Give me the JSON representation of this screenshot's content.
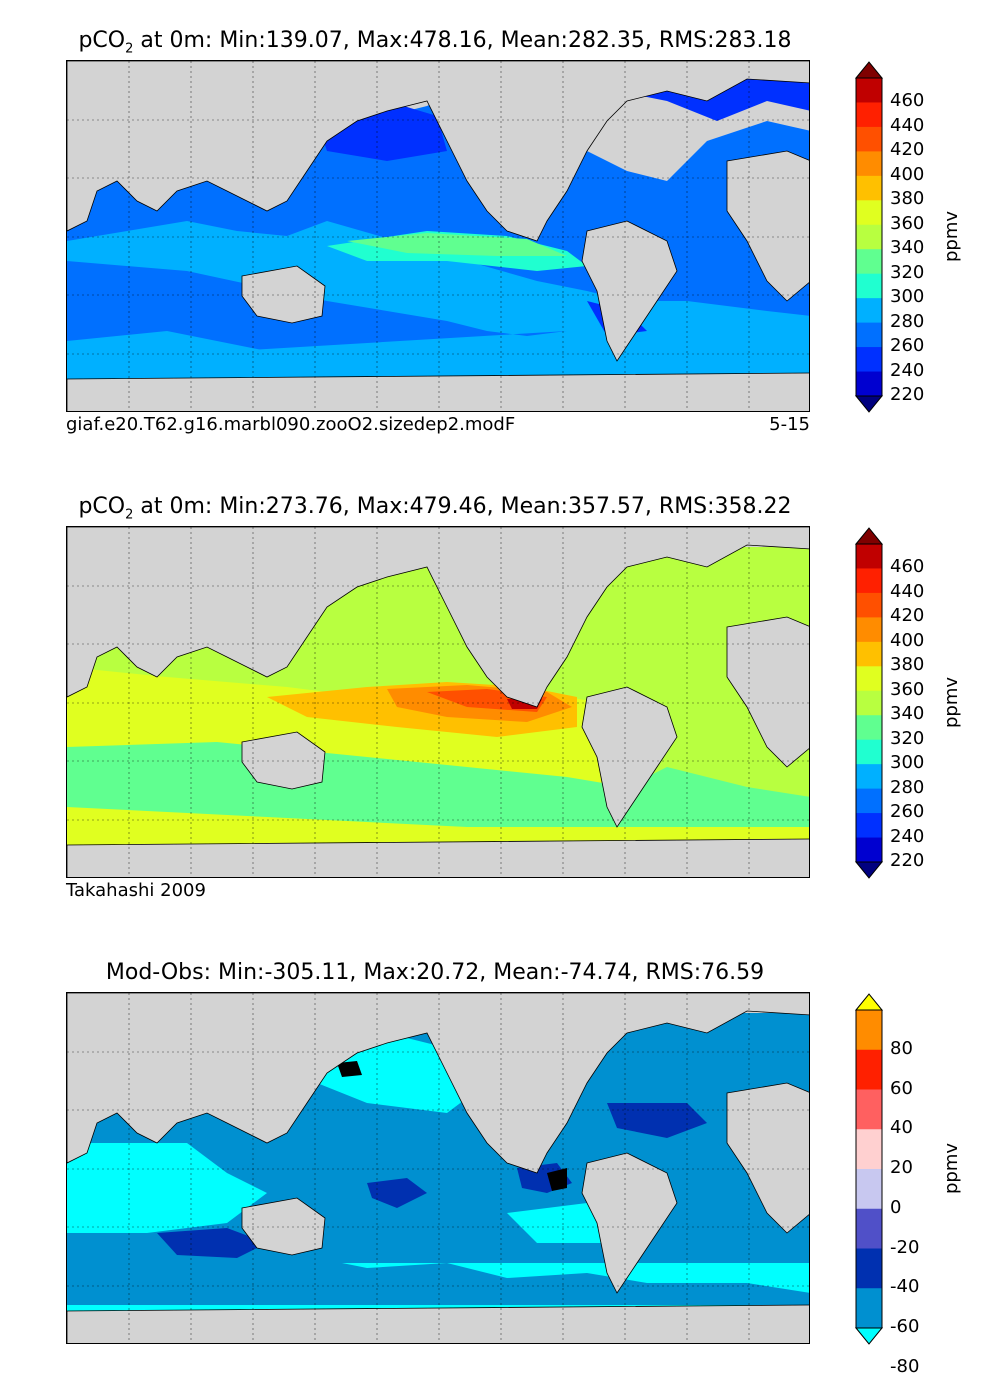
{
  "panels": [
    {
      "title_prefix": "pCO",
      "title_sub": "2",
      "title_rest": " at 0m: Min:139.07, Max:478.16, Mean:282.35, RMS:283.18",
      "caption_left": "giaf.e20.T62.g16.marbl090.zooO2.sizedep2.modF",
      "caption_right": "5-15",
      "colorbar_unit": "ppmv",
      "colorbar_ticks": [
        "460",
        "440",
        "420",
        "400",
        "380",
        "360",
        "340",
        "320",
        "300",
        "280",
        "260",
        "240",
        "220"
      ],
      "colorbar_colors": [
        "#7f0000",
        "#c00000",
        "#ff2000",
        "#ff5000",
        "#ff8c00",
        "#ffc000",
        "#e0ff20",
        "#b8ff40",
        "#60ff90",
        "#20ffd0",
        "#00b0ff",
        "#0070ff",
        "#0030ff",
        "#0000d0",
        "#00007f"
      ],
      "dominant_colors": [
        "#0070ff",
        "#00b0ff",
        "#0030ff",
        "#20ffd0"
      ]
    },
    {
      "title_prefix": "pCO",
      "title_sub": "2",
      "title_rest": " at 0m: Min:273.76, Max:479.46, Mean:357.57, RMS:358.22",
      "caption_left": "Takahashi 2009",
      "caption_right": "",
      "colorbar_unit": "ppmv",
      "colorbar_ticks": [
        "460",
        "440",
        "420",
        "400",
        "380",
        "360",
        "340",
        "320",
        "300",
        "280",
        "260",
        "240",
        "220"
      ],
      "colorbar_colors": [
        "#7f0000",
        "#c00000",
        "#ff2000",
        "#ff5000",
        "#ff8c00",
        "#ffc000",
        "#e0ff20",
        "#b8ff40",
        "#60ff90",
        "#20ffd0",
        "#00b0ff",
        "#0070ff",
        "#0030ff",
        "#0000d0",
        "#00007f"
      ],
      "dominant_colors": [
        "#b8ff40",
        "#e0ff20",
        "#60ff90",
        "#ff5000"
      ]
    },
    {
      "title_prefix": "Mod-Obs: Min:-305.11, Max:20.72, Mean:-74.74, RMS:76.59",
      "title_sub": "",
      "title_rest": "",
      "caption_left": "",
      "caption_right": "",
      "colorbar_unit": "ppmv",
      "colorbar_ticks": [
        "80",
        "60",
        "40",
        "20",
        "0",
        "-20",
        "-40",
        "-60",
        "-80"
      ],
      "colorbar_colors": [
        "#ffff00",
        "#ff8c00",
        "#ff2000",
        "#ff6060",
        "#ffd0d0",
        "#c8c8f0",
        "#5050c8",
        "#0030b0",
        "#0090d0",
        "#00ffff"
      ],
      "dominant_colors": [
        "#0090d0",
        "#00ffff",
        "#0030b0"
      ]
    }
  ]
}
